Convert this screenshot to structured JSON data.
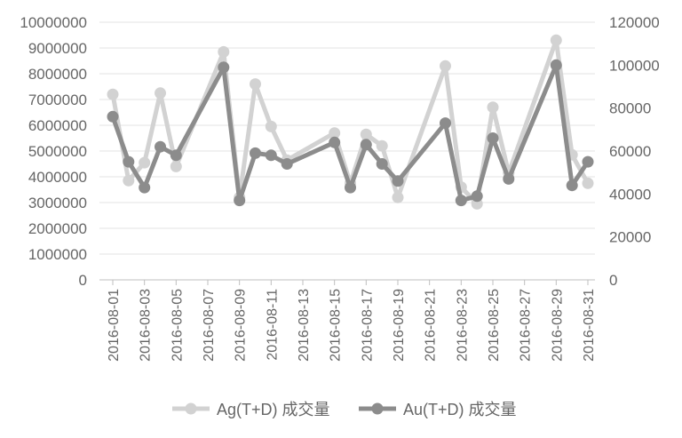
{
  "chart_data": {
    "type": "line",
    "title": "",
    "xlabel": "",
    "ylabel": "",
    "y2label": "",
    "grid": true,
    "legend_position": "bottom",
    "x": [
      "2016-08-01",
      "2016-08-02",
      "2016-08-03",
      "2016-08-04",
      "2016-08-05",
      "2016-08-08",
      "2016-08-09",
      "2016-08-10",
      "2016-08-11",
      "2016-08-12",
      "2016-08-15",
      "2016-08-16",
      "2016-08-17",
      "2016-08-18",
      "2016-08-19",
      "2016-08-22",
      "2016-08-23",
      "2016-08-24",
      "2016-08-25",
      "2016-08-26",
      "2016-08-29",
      "2016-08-30",
      "2016-08-31"
    ],
    "x_tick_labels": [
      "2016-08-01",
      "2016-08-03",
      "2016-08-05",
      "2016-08-07",
      "2016-08-09",
      "2016-08-11",
      "2016-08-13",
      "2016-08-15",
      "2016-08-17",
      "2016-08-19",
      "2016-08-21",
      "2016-08-23",
      "2016-08-25",
      "2016-08-27",
      "2016-08-29",
      "2016-08-31"
    ],
    "x_range": [
      "2016-08-01",
      "2016-08-31"
    ],
    "y_left": {
      "range": [
        0,
        10000000
      ],
      "ticks": [
        "10000000",
        "9000000",
        "8000000",
        "7000000",
        "6000000",
        "5000000",
        "4000000",
        "3000000",
        "2000000",
        "1000000",
        "0"
      ]
    },
    "y_right": {
      "range": [
        0,
        120000
      ],
      "ticks": [
        "120000",
        "100000",
        "80000",
        "60000",
        "40000",
        "20000",
        "0"
      ]
    },
    "series": [
      {
        "name": "Ag(T+D) 成交量",
        "axis": "left",
        "color": "#d2d2d2",
        "values": [
          7200000,
          3850000,
          4550000,
          7250000,
          4400000,
          8850000,
          3200000,
          7600000,
          5950000,
          4650000,
          5700000,
          3750000,
          5650000,
          5200000,
          3200000,
          8300000,
          3600000,
          2950000,
          6700000,
          4150000,
          9300000,
          4850000,
          3750000
        ]
      },
      {
        "name": "Au(T+D) 成交量",
        "axis": "right",
        "color": "#8c8c8c",
        "values": [
          76000,
          55000,
          43000,
          62000,
          58000,
          99000,
          37000,
          59000,
          58000,
          54000,
          64000,
          43000,
          63000,
          54000,
          46000,
          73000,
          37000,
          39000,
          66000,
          47000,
          100000,
          44000,
          55000
        ]
      }
    ]
  }
}
